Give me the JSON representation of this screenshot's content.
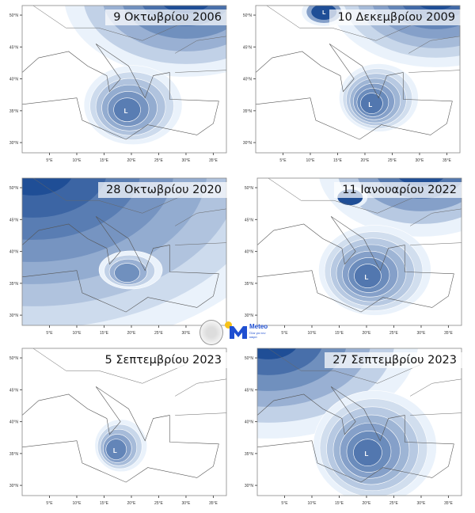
{
  "panels": [
    {
      "title": "9 Οκτωβρίου 2006",
      "low_label": "L",
      "low": {
        "lon": 19,
        "lat": 35
      }
    },
    {
      "title": "10 Δεκεμβρίου 2009",
      "low_label": "L",
      "low": {
        "lon": 21,
        "lat": 36
      },
      "second_label": "L"
    },
    {
      "title": "28 Οκτωβρίου 2020",
      "low_label": "",
      "low": {
        "lon": 19,
        "lat": 36.5
      }
    },
    {
      "title": "11 Ιανουαρίου 2022",
      "low_label": "L",
      "low": {
        "lon": 20,
        "lat": 36
      }
    },
    {
      "title": "5 Σεπτεμβρίου 2023",
      "low_label": "L",
      "low": {
        "lon": 17,
        "lat": 35.5
      }
    },
    {
      "title": "27 Σεπτεμβρίου 2023",
      "low_label": "L",
      "low": {
        "lon": 20,
        "lat": 35
      }
    }
  ],
  "lat_ticks": [
    "50°N",
    "45°N",
    "40°N",
    "35°N",
    "30°N"
  ],
  "lon_ticks": [
    "5°E",
    "10°E",
    "15°E",
    "20°E",
    "25°E",
    "30°E",
    "35°E"
  ],
  "logos": {
    "meteo_name": "Meteo",
    "meteo_sub": "Όλα για τον καιρό"
  },
  "colors": {
    "light": "#eaf2fb",
    "dark": "#1f4e96",
    "map_line": "#555555"
  }
}
